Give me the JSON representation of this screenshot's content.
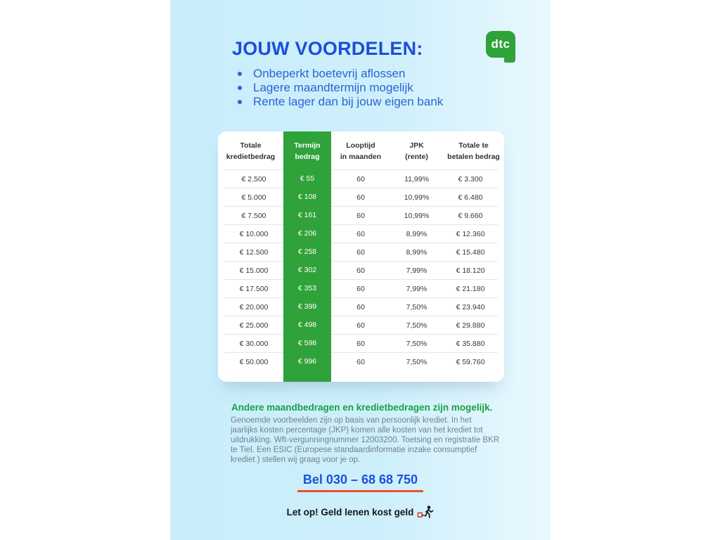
{
  "header": {
    "title": "JOUW VOORDELEN:",
    "logo_text": "dtc",
    "bullets": [
      "Onbeperkt boetevrij aflossen",
      "Lagere maandtermijn mogelijk",
      "Rente lager dan bij jouw eigen bank"
    ]
  },
  "table": {
    "headers": [
      [
        "Totale",
        "kredietbedrag"
      ],
      [
        "Termijn",
        "bedrag"
      ],
      [
        "Looptijd",
        "in maanden"
      ],
      [
        "JPK",
        "(rente)"
      ],
      [
        "Totale te",
        "betalen bedrag"
      ]
    ],
    "rows": [
      [
        "€ 2.500",
        "€ 55",
        "60",
        "11,99%",
        "€ 3.300"
      ],
      [
        "€ 5.000",
        "€ 108",
        "60",
        "10,99%",
        "€ 6.480"
      ],
      [
        "€ 7.500",
        "€ 161",
        "60",
        "10,99%",
        "€ 9.660"
      ],
      [
        "€ 10.000",
        "€ 206",
        "60",
        "8,99%",
        "€ 12.360"
      ],
      [
        "€ 12.500",
        "€ 258",
        "60",
        "8,99%",
        "€ 15.480"
      ],
      [
        "€ 15.000",
        "€ 302",
        "60",
        "7,99%",
        "€ 18.120"
      ],
      [
        "€ 17.500",
        "€ 353",
        "60",
        "7,99%",
        "€ 21.180"
      ],
      [
        "€ 20.000",
        "€ 399",
        "60",
        "7,50%",
        "€ 23.940"
      ],
      [
        "€ 25.000",
        "€ 498",
        "60",
        "7,50%",
        "€ 29.880"
      ],
      [
        "€ 30.000",
        "€ 598",
        "60",
        "7,50%",
        "€ 35.880"
      ],
      [
        "€ 50.000",
        "€ 996",
        "60",
        "7,50%",
        "€ 59.760"
      ]
    ]
  },
  "footer": {
    "highlight": "Andere maandbedragen en kredietbedragen zijn mogelijk.",
    "disclaimer": "Genoemde voorbeelden zijn op basis van persoonlijk krediet. In het jaarlijks kosten percentage (JKP) komen alle kosten van het krediet tot uitdrukking. Wft-vergunningnummer 12003200. Toetsing en registratie BKR te Tiel. Een ESIC (Europese standaardinformatie inzake consumptief krediet ) stellen wij graag voor je op.",
    "phone": "Bel 030 – 68 68 750",
    "warning": "Let op! Geld lenen kost geld"
  },
  "colors": {
    "background_left": "#c9edfb",
    "background_right": "#e9f8fe",
    "title_blue": "#1d4fd8",
    "bullet_blue": "#2c63d3",
    "brand_green": "#2fa23a",
    "highlight_green": "#17a244",
    "phone_blue": "#1b52d8",
    "underline_orange": "#e8532b",
    "body_gray": "#75808a"
  }
}
